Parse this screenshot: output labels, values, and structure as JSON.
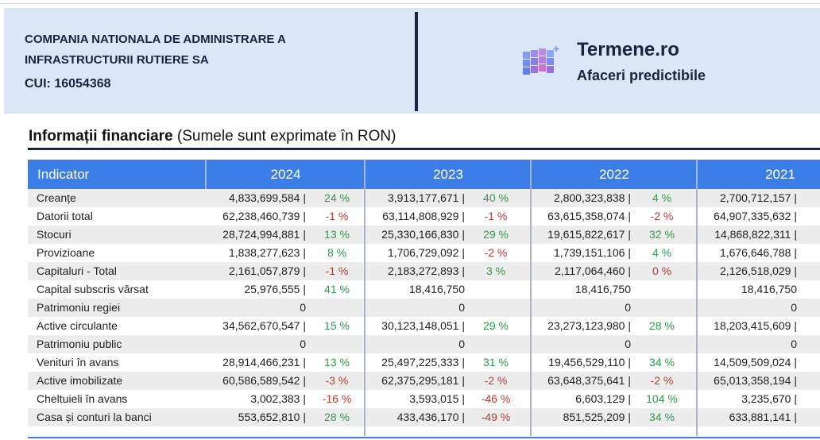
{
  "header": {
    "company": [
      "COMPANIA NATIONALA DE ADMINISTRARE A",
      "INFRASTRUCTURII RUTIERE SA"
    ],
    "cui": "CUI: 16054368",
    "brand": "Termene.ro",
    "tagline": "Afaceri predictibile"
  },
  "section": {
    "title": "Informații financiare",
    "note": "(Sumele sunt exprimate în RON)"
  },
  "table": {
    "columns": [
      "Indicator",
      "2024",
      "2023",
      "2022",
      "2021"
    ],
    "rows": [
      {
        "label": "Creanțe",
        "cells": [
          {
            "value": "4,833,699,584 |",
            "pct": "24 %"
          },
          {
            "value": "3,913,177,671 |",
            "pct": "40 %"
          },
          {
            "value": "2,800,323,838 |",
            "pct": "4 %"
          },
          {
            "value": "2,700,712,157 |"
          }
        ]
      },
      {
        "label": "Datorii total",
        "cells": [
          {
            "value": "62,238,460,739 |",
            "pct": "-1 %"
          },
          {
            "value": "63,114,808,929 |",
            "pct": "-1 %"
          },
          {
            "value": "63,615,358,074 |",
            "pct": "-2 %"
          },
          {
            "value": "64,907,335,632 |"
          }
        ]
      },
      {
        "label": "Stocuri",
        "cells": [
          {
            "value": "28,724,994,881 |",
            "pct": "13 %"
          },
          {
            "value": "25,330,166,830 |",
            "pct": "29 %"
          },
          {
            "value": "19,615,822,617 |",
            "pct": "32 %"
          },
          {
            "value": "14,868,822,311 |"
          }
        ]
      },
      {
        "label": "Provizioane",
        "cells": [
          {
            "value": "1,838,277,623 |",
            "pct": "8 %"
          },
          {
            "value": "1,706,729,092 |",
            "pct": "-2 %"
          },
          {
            "value": "1,739,151,106 |",
            "pct": "4 %"
          },
          {
            "value": "1,676,646,788 |"
          }
        ]
      },
      {
        "label": "Capitaluri - Total",
        "cells": [
          {
            "value": "2,161,057,879 |",
            "pct": "-1 %"
          },
          {
            "value": "2,183,272,893 |",
            "pct": "3 %"
          },
          {
            "value": "2,117,064,460 |",
            "pct": "0 %"
          },
          {
            "value": "2,126,518,029 |"
          }
        ]
      },
      {
        "label": "Capital subscris vărsat",
        "cells": [
          {
            "value": "25,976,555 |",
            "pct": "41 %"
          },
          {
            "value": "18,416,750"
          },
          {
            "value": "18,416,750"
          },
          {
            "value": "18,416,750"
          }
        ]
      },
      {
        "label": "Patrimoniu regiei",
        "cells": [
          {
            "value": "0"
          },
          {
            "value": "0"
          },
          {
            "value": "0"
          },
          {
            "value": "0"
          }
        ]
      },
      {
        "label": "Active circulante",
        "cells": [
          {
            "value": "34,562,670,547 |",
            "pct": "15 %"
          },
          {
            "value": "30,123,148,051 |",
            "pct": "29 %"
          },
          {
            "value": "23,273,123,980 |",
            "pct": "28 %"
          },
          {
            "value": "18,203,415,609 |"
          }
        ]
      },
      {
        "label": "Patrimoniu public",
        "cells": [
          {
            "value": "0"
          },
          {
            "value": "0"
          },
          {
            "value": "0"
          },
          {
            "value": "0"
          }
        ]
      },
      {
        "label": "Venituri în avans",
        "cells": [
          {
            "value": "28,914,466,231 |",
            "pct": "13 %"
          },
          {
            "value": "25,497,225,333 |",
            "pct": "31 %"
          },
          {
            "value": "19,456,529,110 |",
            "pct": "34 %"
          },
          {
            "value": "14,509,509,024 |"
          }
        ]
      },
      {
        "label": "Active imobilizate",
        "cells": [
          {
            "value": "60,586,589,542 |",
            "pct": "-3 %"
          },
          {
            "value": "62,375,295,181 |",
            "pct": "-2 %"
          },
          {
            "value": "63,648,375,641 |",
            "pct": "-2 %"
          },
          {
            "value": "65,013,358,194 |"
          }
        ]
      },
      {
        "label": "Cheltuieli în avans",
        "cells": [
          {
            "value": "3,002,383 |",
            "pct": "-16 %"
          },
          {
            "value": "3,593,015 |",
            "pct": "-46 %"
          },
          {
            "value": "6,603,129 |",
            "pct": "104 %"
          },
          {
            "value": "3,235,670 |"
          }
        ]
      },
      {
        "label": "Casa și conturi la banci",
        "cells": [
          {
            "value": "553,652,810 |",
            "pct": "28 %"
          },
          {
            "value": "433,436,170 |",
            "pct": "-49 %"
          },
          {
            "value": "851,525,209 |",
            "pct": "34 %"
          },
          {
            "value": "633,881,141 |"
          }
        ]
      }
    ]
  }
}
